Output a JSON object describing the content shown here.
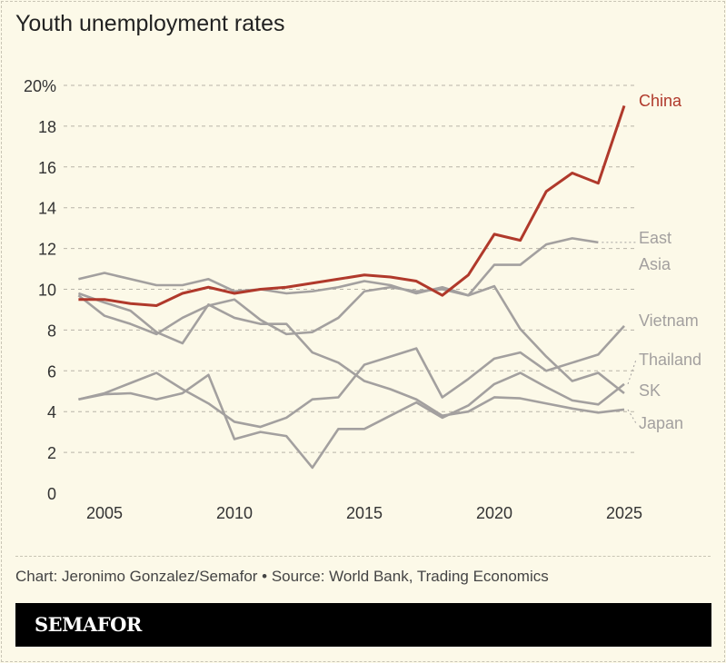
{
  "title": "Youth unemployment rates",
  "credit": "Chart: Jeronimo Gonzalez/Semafor • Source: World Bank, Trading Economics",
  "brand": "SEMAFOR",
  "colors": {
    "background": "#fcf9e8",
    "highlight": "#b0392b",
    "other": "#a3a09f",
    "grid": "#b8b4a8"
  },
  "chart_data": {
    "type": "line",
    "title": "Youth unemployment rates",
    "xlim": [
      2004,
      2025
    ],
    "ylim": [
      0,
      20
    ],
    "grid": true,
    "x_ticks": [
      "2005",
      "2010",
      "2015",
      "2020",
      "2025"
    ],
    "y_ticks": [
      "0",
      "2",
      "4",
      "6",
      "8",
      "10",
      "12",
      "14",
      "16",
      "18",
      "20%"
    ],
    "x": [
      2004,
      2005,
      2006,
      2007,
      2008,
      2009,
      2010,
      2011,
      2012,
      2013,
      2014,
      2015,
      2016,
      2017,
      2018,
      2019,
      2020,
      2021,
      2022,
      2023,
      2024,
      2025
    ],
    "series": [
      {
        "name": "East Asia",
        "label_lines": [
          "East",
          "Asia"
        ],
        "values": [
          10.5,
          10.8,
          10.5,
          10.2,
          10.2,
          10.5,
          9.9,
          10.0,
          9.8,
          9.9,
          10.1,
          10.4,
          10.2,
          9.8,
          10.1,
          9.7,
          11.2,
          11.2,
          12.2,
          12.5,
          12.3,
          null
        ]
      },
      {
        "name": "Vietnam",
        "label_lines": [
          "Vietnam"
        ],
        "values": [
          4.6,
          4.9,
          5.4,
          5.9,
          5.1,
          4.4,
          3.5,
          3.25,
          3.7,
          4.6,
          4.7,
          6.3,
          6.7,
          7.1,
          4.7,
          5.6,
          6.6,
          6.9,
          6.0,
          6.4,
          6.8,
          8.2
        ]
      },
      {
        "name": "Thailand",
        "label_lines": [
          "Thailand"
        ],
        "values": [
          4.6,
          4.85,
          4.9,
          4.6,
          4.9,
          5.8,
          2.65,
          3.0,
          2.8,
          1.25,
          3.15,
          3.15,
          3.8,
          4.45,
          3.7,
          4.3,
          5.35,
          5.9,
          5.2,
          4.55,
          4.35,
          5.35
        ]
      },
      {
        "name": "SK",
        "label_lines": [
          "SK"
        ],
        "values": [
          9.7,
          8.7,
          8.3,
          7.8,
          8.6,
          9.2,
          9.5,
          8.5,
          7.8,
          7.9,
          8.6,
          9.9,
          10.1,
          9.9,
          10.0,
          9.7,
          10.15,
          8.05,
          6.7,
          5.5,
          5.9,
          4.9
        ]
      },
      {
        "name": "Japan",
        "label_lines": [
          "Japan"
        ],
        "values": [
          9.8,
          9.35,
          8.95,
          7.9,
          7.35,
          9.25,
          8.6,
          8.3,
          8.3,
          6.9,
          6.4,
          5.5,
          5.1,
          4.6,
          3.8,
          4.0,
          4.7,
          4.65,
          4.4,
          4.15,
          3.95,
          4.1
        ]
      },
      {
        "name": "China",
        "label_lines": [
          "China"
        ],
        "highlight": true,
        "values": [
          9.5,
          9.5,
          9.3,
          9.2,
          9.8,
          10.1,
          9.8,
          10.0,
          10.1,
          10.3,
          10.5,
          10.7,
          10.6,
          10.4,
          9.7,
          10.7,
          12.7,
          12.4,
          14.8,
          15.7,
          15.2,
          19.0
        ]
      }
    ]
  }
}
